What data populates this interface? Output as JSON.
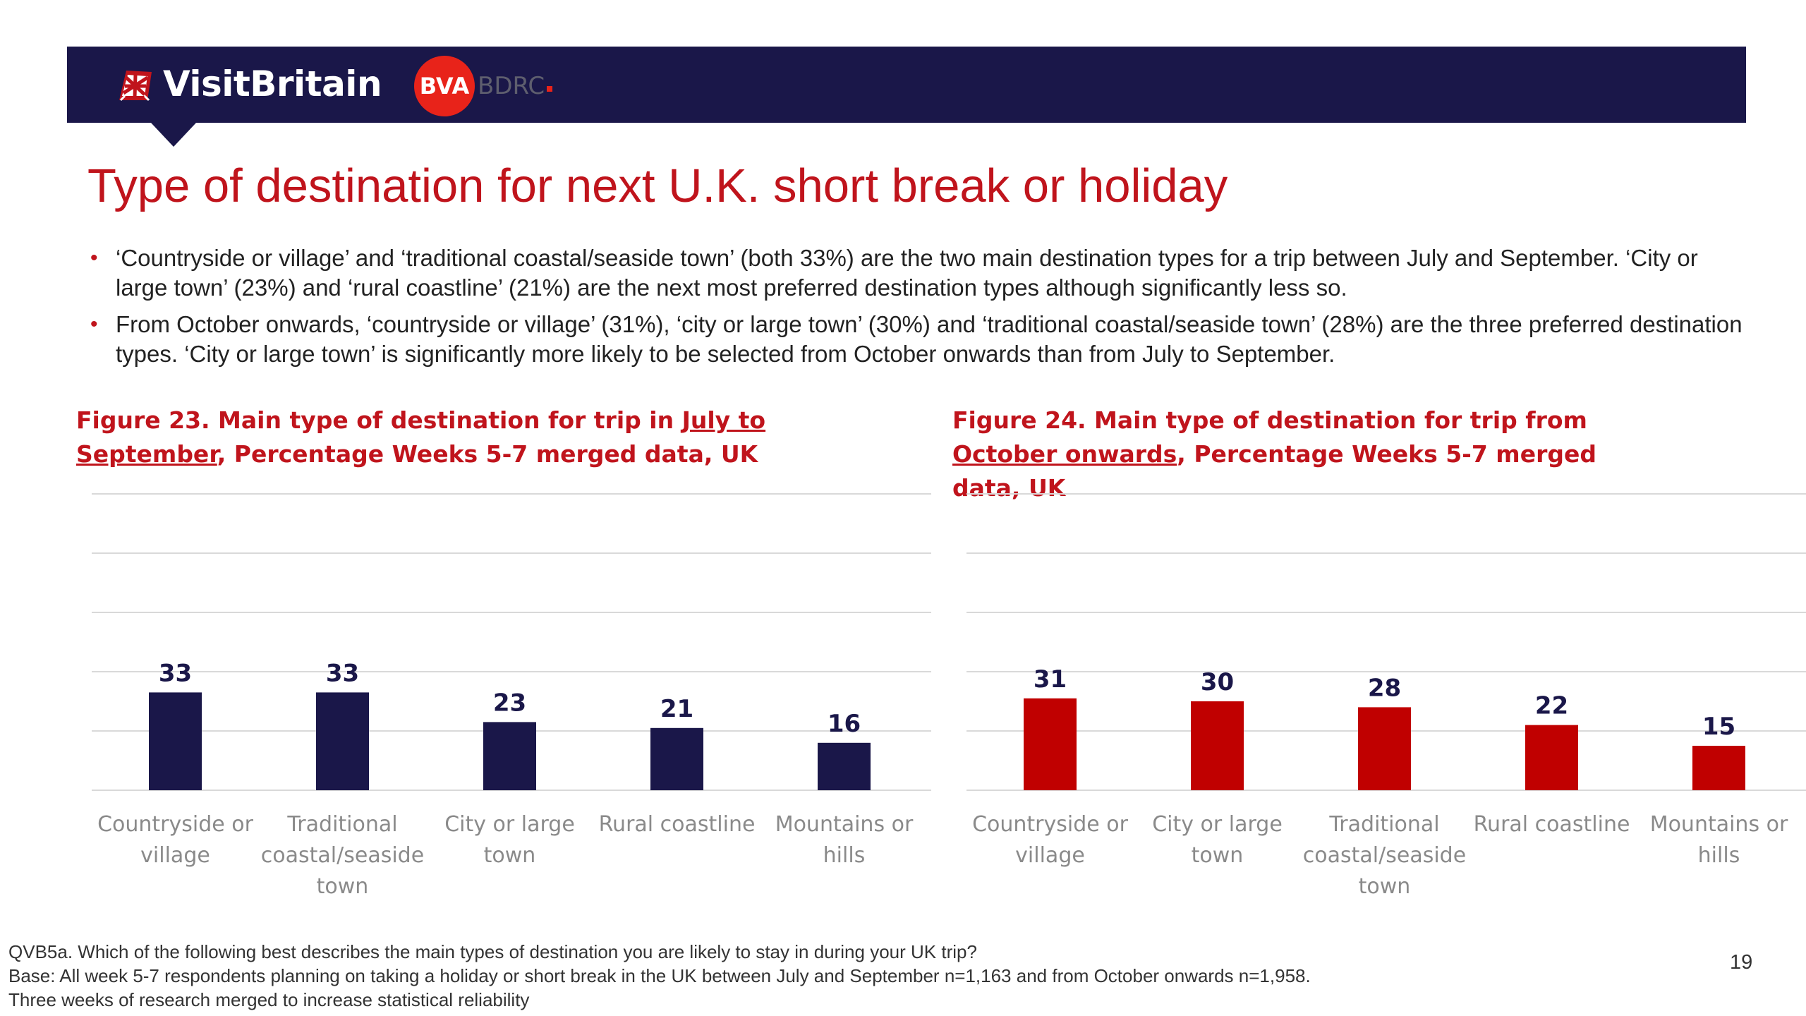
{
  "header": {
    "visitbritain_logo_text": "VisitBritain",
    "bva_text": "BVA",
    "bdrc_text": "BDRC",
    "colors": {
      "bar": "#1a1749",
      "bva_red": "#e8231a"
    }
  },
  "page": {
    "title": "Type of destination for next U.K. short break or holiday",
    "bullets": [
      "‘Countryside or village’ and ‘traditional coastal/seaside town’ (both 33%) are the two main destination types for a trip between July and September. ‘City or large town’ (23%) and ‘rural coastline’ (21%) are the next most preferred destination types although significantly less so.",
      "From October onwards, ‘countryside or village’ (31%), ‘city or large town’ (30%) and ‘traditional coastal/seaside town’ (28%) are the three preferred destination types. ‘City or large town’ is significantly more likely to be selected from October onwards than from July to September."
    ],
    "page_number": "19"
  },
  "figures": [
    {
      "title_a": "Figure 23. Main type of destination for trip in ",
      "title_u": "July to September",
      "title_b": ", Percentage Weeks 5-7 merged data, UK"
    },
    {
      "title_a": "Figure 24. Main type of destination for trip from ",
      "title_u": "October onwards",
      "title_b": ", Percentage Weeks 5-7 merged data, UK"
    }
  ],
  "chart_data": [
    {
      "type": "bar",
      "title": "Figure 23. Main type of destination for trip in July to September, Percentage Weeks 5-7 merged data, UK",
      "categories": [
        "Countryside or village",
        "Traditional coastal/seaside town",
        "City or large town",
        "Rural coastline",
        "Mountains or hills"
      ],
      "values": [
        33,
        33,
        23,
        21,
        16
      ],
      "ylim": [
        0,
        100
      ],
      "grid": true,
      "color": "#1a1749"
    },
    {
      "type": "bar",
      "title": "Figure 24. Main type of destination for trip from October onwards, Percentage Weeks 5-7 merged data, UK",
      "categories": [
        "Countryside or village",
        "City or large town",
        "Traditional coastal/seaside town",
        "Rural coastline",
        "Mountains or hills"
      ],
      "values": [
        31,
        30,
        28,
        22,
        15
      ],
      "ylim": [
        0,
        100
      ],
      "grid": true,
      "color": "#c00000"
    }
  ],
  "footnote": {
    "line1": "QVB5a.  Which of the following best describes the main types of destination you are likely to stay in during your UK trip?",
    "line2": "Base: All week 5-7 respondents planning on taking a holiday or short break in the UK between July and September n=1,163 and from October onwards n=1,958.",
    "line3": "Three weeks of research merged to increase statistical reliability"
  }
}
